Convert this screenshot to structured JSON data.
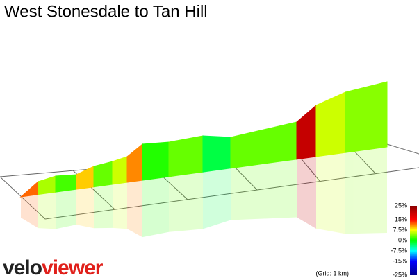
{
  "chart_data": {
    "type": "profile",
    "title": "West Stonesdale to Tan Hill",
    "segments": [
      12,
      5,
      2,
      9,
      3,
      6,
      11,
      1,
      3,
      -2,
      3,
      20,
      6,
      4
    ],
    "colorscale": {
      "ticks": [
        {
          "value": 25,
          "label": "25%"
        },
        {
          "value": 15,
          "label": "15%"
        },
        {
          "value": 7.5,
          "label": "7.5%"
        },
        {
          "value": 0,
          "label": "0%"
        },
        {
          "value": -7.5,
          "label": "-7.5%"
        },
        {
          "value": -15,
          "label": "-15%"
        },
        {
          "value": -25,
          "label": "-25%"
        }
      ],
      "colors": [
        "#8b0000",
        "#ff0000",
        "#ffff00",
        "#00ff00",
        "#00ffff",
        "#0000ff",
        "#00008b"
      ]
    },
    "grid_note": "(Grid: 1 km)",
    "logo": {
      "part1": "velo",
      "part2": "viewer"
    }
  }
}
